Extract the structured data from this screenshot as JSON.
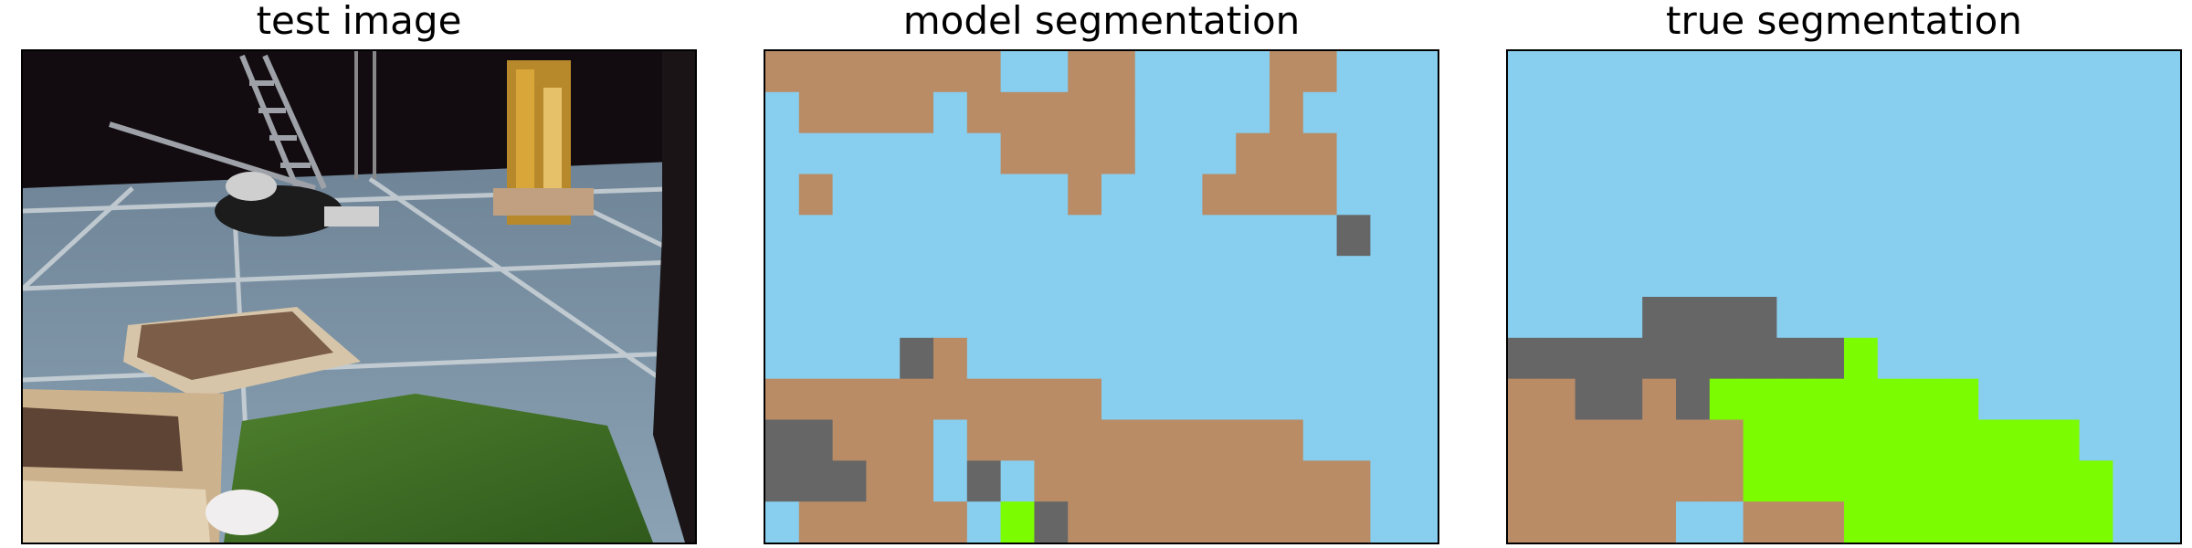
{
  "panels": {
    "test_image": {
      "title": "test image"
    },
    "model_segmentation": {
      "title": "model segmentation"
    },
    "true_segmentation": {
      "title": "true segmentation"
    }
  },
  "colors": {
    "B": "#B98C66",
    "S": "#88CEEE",
    "G": "#666666",
    "L": "#7CFC00"
  },
  "model_grid": [
    "BBBBBBBSSBBSSSSBBSSS",
    "SBBBBSBBBBBSSSSBSSSS",
    "SSSSSSSBBBBSSSBBBSSS",
    "SBSSSSSSSBSSSBBBBSSS",
    "SSSSSSSSSSSSSSSSSGSS",
    "SSSSSSSSSSSSSSSSSSSS",
    "SSSSSSSSSSSSSSSSSSSS",
    "SSSSGBSSSSSSSSSSSSSS",
    "BBBBBBBBBBSSSSSSSSSS",
    "GGBBBSBBBBBBBBBBSSSS",
    "GGGBBSGSBBBBBBBBBBSS",
    "SBBBBBSLGBBBBBBBBBSS"
  ],
  "true_grid": [
    "SSSSSSSSSSSSSSSSSSSS",
    "SSSSSSSSSSSSSSSSSSSS",
    "SSSSSSSSSSSSSSSSSSSS",
    "SSSSSSSSSSSSSSSSSSSS",
    "SSSSSSSSSSSSSSSSSSSS",
    "SSSSSSSSSSSSSSSSSSSS",
    "SSSSGGGGSSSSSSSSSSSS",
    "GGGGGGGGGGLSSSSSSSSS",
    "BBGGBGLLLLLLLLSSSSSS",
    "BBBBBBBLLLLLLLLLLSSS",
    "BBBBBBBLLLLLLLLLLLSS",
    "BBBBBSSBBBLLLLLLLLSS"
  ]
}
